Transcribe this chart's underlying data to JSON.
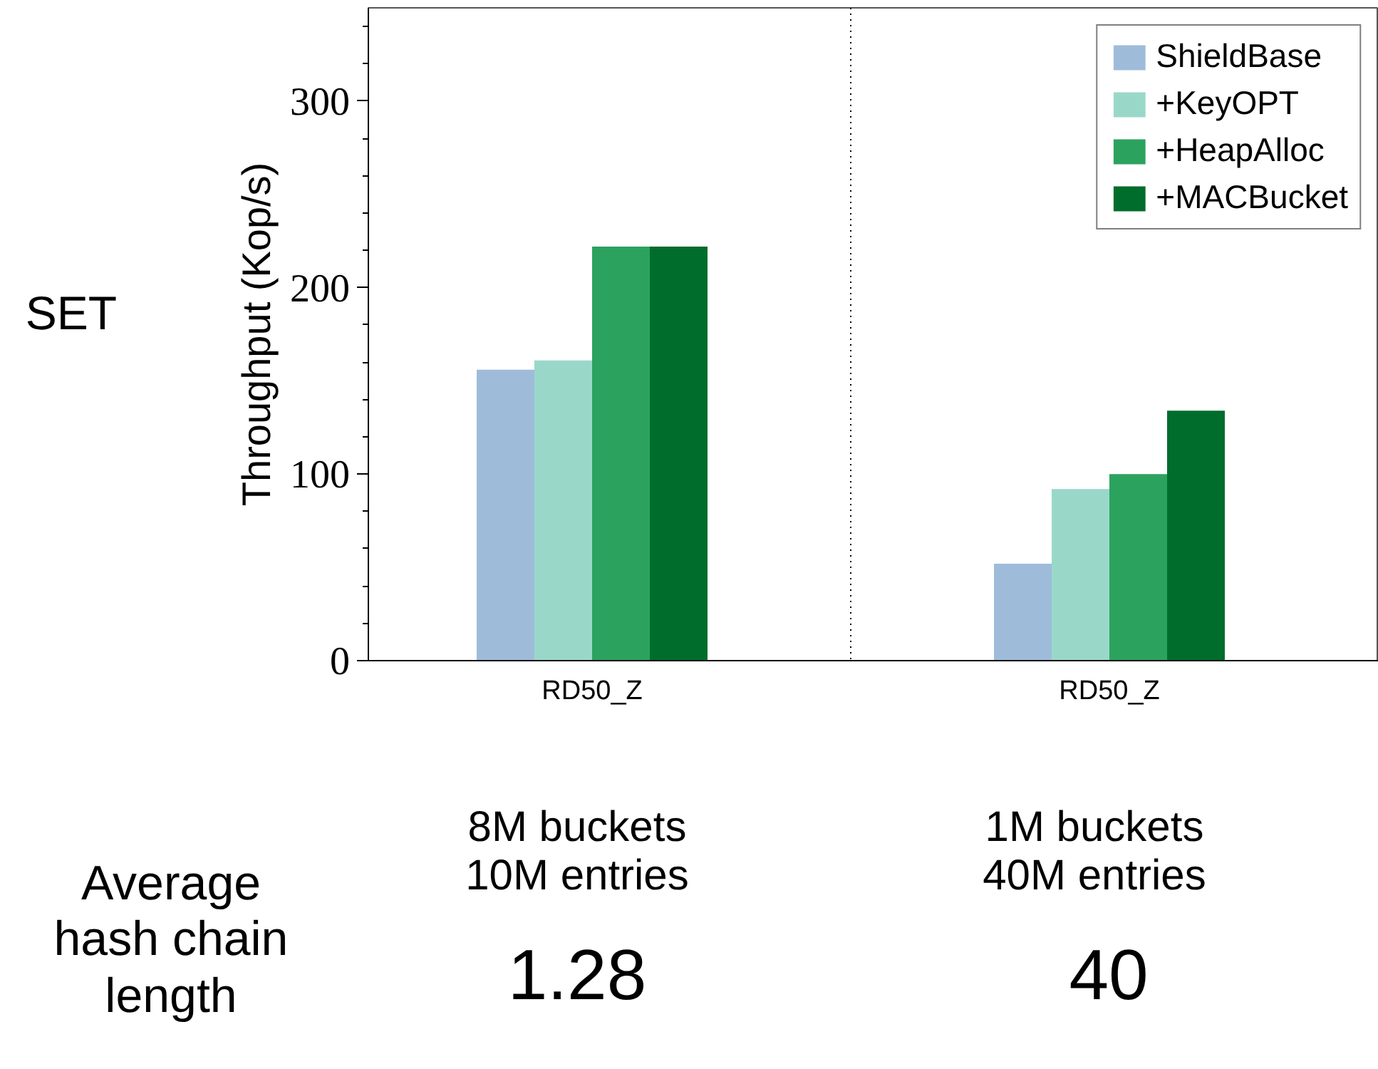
{
  "chart_data": {
    "type": "bar",
    "ylabel": "Throughput (Kop/s)",
    "categories": [
      "RD50_Z",
      "RD50_Z"
    ],
    "series": [
      {
        "name": "ShieldBase",
        "color": "#9ebcda",
        "values": [
          156,
          52
        ]
      },
      {
        "name": "+KeyOPT",
        "color": "#99d8c9",
        "values": [
          161,
          92
        ]
      },
      {
        "name": "+HeapAlloc",
        "color": "#2ca25f",
        "values": [
          222,
          100
        ]
      },
      {
        "name": "+MACBucket",
        "color": "#006d2c",
        "values": [
          222,
          134
        ]
      }
    ],
    "ylim": [
      0,
      350
    ],
    "yticks": [
      0,
      {
        "value": 20,
        "label": null
      },
      {
        "value": 40,
        "label": null
      },
      {
        "value": 60,
        "label": null
      },
      {
        "value": 80,
        "label": null
      },
      100,
      {
        "value": 120,
        "label": null
      },
      {
        "value": 140,
        "label": null
      },
      {
        "value": 160,
        "label": null
      },
      {
        "value": 180,
        "label": null
      },
      200,
      {
        "value": 220,
        "label": null
      },
      {
        "value": 240,
        "label": null
      },
      {
        "value": 260,
        "label": null
      },
      {
        "value": 280,
        "label": null
      },
      300,
      {
        "value": 320,
        "label": null
      },
      {
        "value": 340,
        "label": null
      }
    ],
    "grid": false,
    "legend": "top right",
    "annotations": [
      "SET",
      "Average\nhash chain\nlength",
      "8M buckets\n10M entries",
      "1.28",
      "1M buckets\n40M entries",
      "40"
    ]
  }
}
